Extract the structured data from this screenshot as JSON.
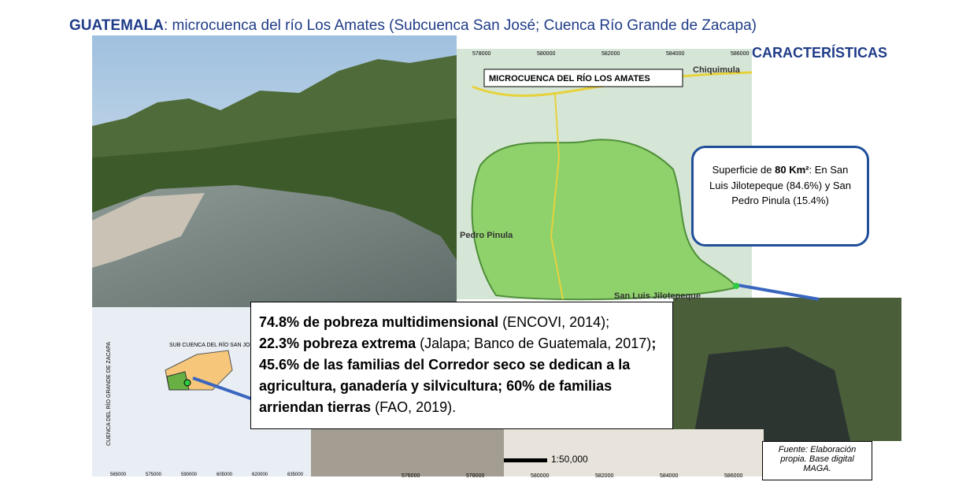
{
  "header": {
    "title_bold": "GUATEMALA",
    "title_rest": ": microcuenca del río Los Amates (Subcuenca San José; Cuenca Río Grande de Zacapa)"
  },
  "section_label": "CARACTERÍSTICAS",
  "map": {
    "title": "MICROCUENCA DEL RÍO LOS AMATES",
    "places": [
      "Chiquimula",
      "Pedro Pinula",
      "San Luis Jilotepeque"
    ],
    "top_coords": [
      "578000",
      "580000",
      "582000",
      "584000",
      "586000"
    ],
    "bottom_coords": [
      "576000",
      "578000",
      "580000",
      "582000",
      "584000",
      "586000"
    ],
    "scale": "1:50,000"
  },
  "callout": {
    "text_before": "Superficie de ",
    "bold": "80 Km²",
    "text_after": ": En San Luis Jilotepeque (84.6%) y San Pedro Pinula (15.4%)"
  },
  "summary": {
    "segments": [
      {
        "text": "74.8% de pobreza multidimensional",
        "bold": true
      },
      {
        "text": " (ENCOVI, 2014);",
        "bold": false
      },
      {
        "text": "22.3% pobreza extrema",
        "bold": true
      },
      {
        "text": " (Jalapa; Banco de Guatemala, 2017)",
        "bold": false
      },
      {
        "text": ";",
        "bold": true
      },
      {
        "text": "45.6% de las familias del Corredor seco se dedican a la agricultura, ganadería y silvicultura; 60% de familias arriendan tierras",
        "bold": true
      },
      {
        "text": " (FAO, 2019).",
        "bold": false
      }
    ]
  },
  "inset_map": {
    "labels": [
      "SUB CUENCA DEL RÍO SAN JOSÉ",
      "CUENCA DEL RÍO GRANDE DE ZACAPA"
    ],
    "coords": [
      "565000",
      "575000",
      "590000",
      "605000",
      "620000",
      "635000"
    ]
  },
  "source": "Fuente: Elaboración propia. Base digital MAGA."
}
